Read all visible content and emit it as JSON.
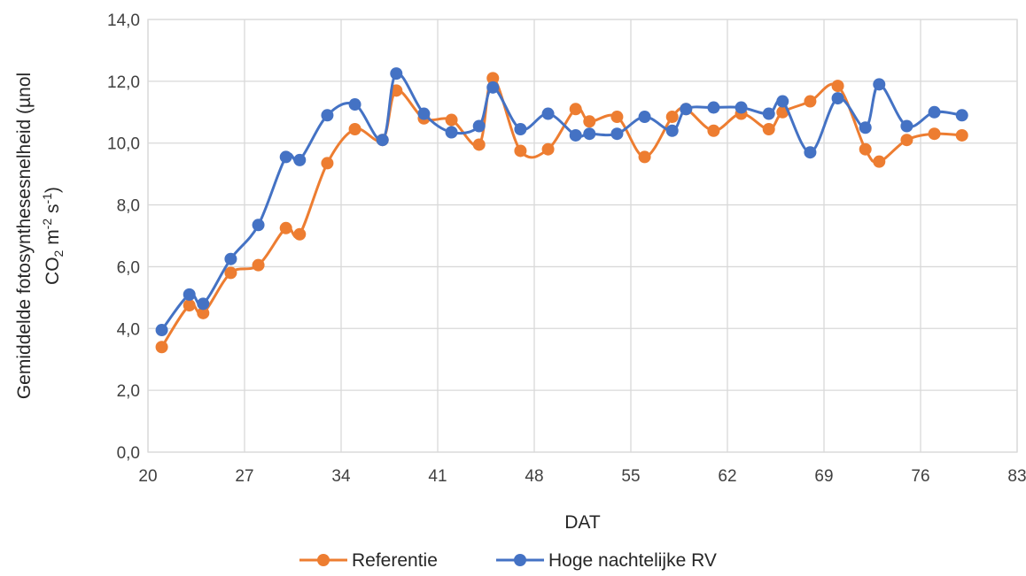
{
  "chart_data": {
    "type": "line",
    "xlabel": "DAT",
    "ylabel_line1": "Gemiddelde fotosynthesesnelheid (µnol",
    "ylabel_line2_prefix": "CO",
    "ylabel_line2_sub": "2",
    "ylabel_line2_mid": " m",
    "ylabel_line2_sup1": "-2",
    "ylabel_line2_mid2": " s",
    "ylabel_line2_sup2": "-1",
    "ylabel_line2_suffix": ")",
    "xlim": [
      20,
      83
    ],
    "ylim": [
      0,
      14
    ],
    "x_ticks": [
      20,
      27,
      34,
      41,
      48,
      55,
      62,
      69,
      76,
      83
    ],
    "x_tick_labels": [
      "20",
      "27",
      "34",
      "41",
      "48",
      "55",
      "62",
      "69",
      "76",
      "83"
    ],
    "y_ticks": [
      0,
      2,
      4,
      6,
      8,
      10,
      12,
      14
    ],
    "y_tick_labels": [
      "0,0",
      "2,0",
      "4,0",
      "6,0",
      "8,0",
      "10,0",
      "12,0",
      "14,0"
    ],
    "grid": true,
    "legend_position": "bottom",
    "smoothed": true,
    "series": [
      {
        "name": "Referentie",
        "color": "#ed7d31",
        "x": [
          21,
          23,
          24,
          26,
          28,
          30,
          31,
          33,
          35,
          37,
          38,
          40,
          42,
          44,
          45,
          47,
          49,
          51,
          52,
          54,
          56,
          58,
          59,
          61,
          63,
          65,
          66,
          68,
          70,
          72,
          73,
          75,
          77,
          79
        ],
        "y": [
          3.4,
          4.75,
          4.5,
          5.8,
          6.05,
          7.25,
          7.05,
          9.35,
          10.45,
          10.1,
          11.7,
          10.8,
          10.75,
          9.95,
          12.1,
          9.75,
          9.8,
          11.1,
          10.7,
          10.85,
          9.55,
          10.85,
          11.1,
          10.4,
          10.95,
          10.45,
          11.0,
          11.35,
          11.85,
          9.8,
          9.4,
          10.1,
          10.3,
          10.25
        ]
      },
      {
        "name": "Hoge nachtelijke RV",
        "color": "#4472c4",
        "x": [
          21,
          23,
          24,
          26,
          28,
          30,
          31,
          33,
          35,
          37,
          38,
          40,
          42,
          44,
          45,
          47,
          49,
          51,
          52,
          54,
          56,
          58,
          59,
          61,
          63,
          65,
          66,
          68,
          70,
          72,
          73,
          75,
          77,
          79
        ],
        "y": [
          3.95,
          5.1,
          4.8,
          6.25,
          7.35,
          9.55,
          9.45,
          10.9,
          11.25,
          10.1,
          12.25,
          10.95,
          10.35,
          10.55,
          11.8,
          10.45,
          10.95,
          10.25,
          10.3,
          10.3,
          10.85,
          10.4,
          11.1,
          11.15,
          11.15,
          10.95,
          11.35,
          9.7,
          11.45,
          10.5,
          11.9,
          10.55,
          11.0,
          10.9
        ]
      }
    ]
  }
}
